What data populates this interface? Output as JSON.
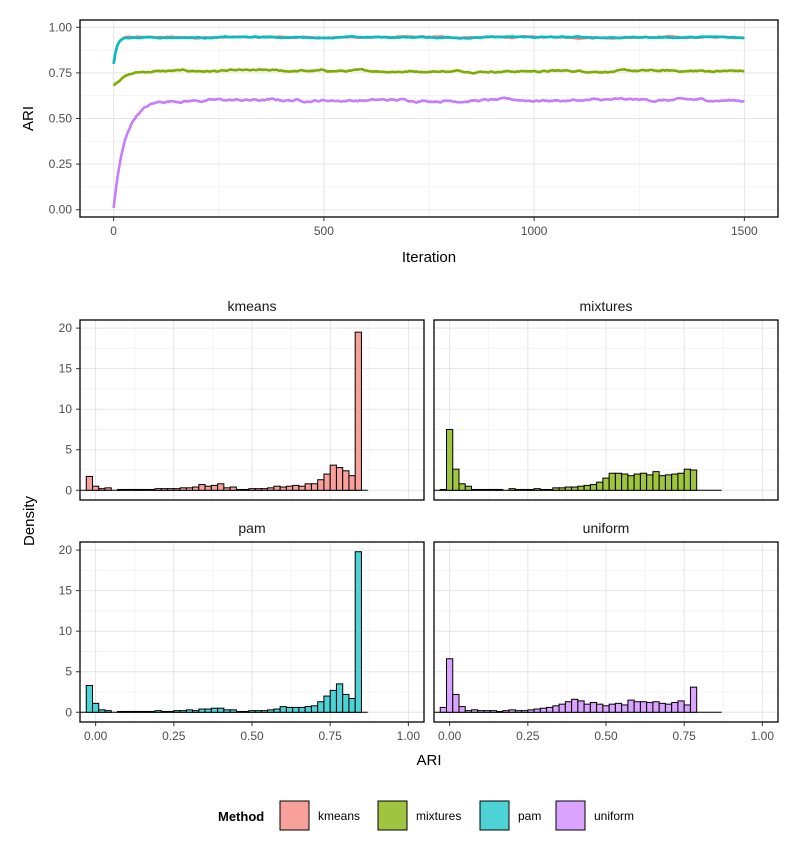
{
  "colors": {
    "kmeans": "#F8766D",
    "mixtures": "#7CAE00",
    "pam": "#00BFC4",
    "uniform": "#C77CFF",
    "hist_kmeans": "#F8A09A",
    "hist_mixtures": "#9FC440",
    "hist_pam": "#4DD3D6",
    "hist_uniform": "#D9A3FF"
  },
  "chart_data": [
    {
      "type": "line",
      "xlabel": "Iteration",
      "ylabel": "ARI",
      "xlim": [
        -80,
        1580
      ],
      "ylim": [
        -0.04,
        1.04
      ],
      "xticks": [
        0,
        500,
        1000,
        1500
      ],
      "xtick_labels": [
        "0",
        "500",
        "1000",
        "1500"
      ],
      "yticks": [
        0,
        0.25,
        0.5,
        0.75,
        1.0
      ],
      "ytick_labels": [
        "0.00",
        "0.25",
        "0.50",
        "0.75",
        "1.00"
      ],
      "series": [
        {
          "name": "kmeans",
          "start": 0.8,
          "plateau": 0.945,
          "rate": 8,
          "noise": 0.004
        },
        {
          "name": "mixtures",
          "start": 0.68,
          "plateau": 0.76,
          "rate": 25,
          "noise": 0.006
        },
        {
          "name": "uniform",
          "start": 0.01,
          "plateau": 0.6,
          "rate": 28,
          "noise": 0.008
        },
        {
          "name": "pam",
          "start": 0.8,
          "plateau": 0.945,
          "rate": 8,
          "noise": 0.004
        }
      ],
      "n_iterations": 1500
    },
    {
      "type": "bar",
      "facet_type": "histogram",
      "xlabel": "ARI",
      "ylabel": "Density",
      "xlim": [
        -0.05,
        1.05
      ],
      "ylim": [
        -1.2,
        21
      ],
      "xticks": [
        0,
        0.25,
        0.5,
        0.75,
        1.0
      ],
      "xtick_labels": [
        "0.00",
        "0.25",
        "0.50",
        "0.75",
        "1.00"
      ],
      "yticks": [
        0,
        5,
        10,
        15,
        20
      ],
      "ytick_labels": [
        "0",
        "5",
        "10",
        "15",
        "20"
      ],
      "bins_start": -0.05,
      "bin_width": 0.02,
      "facets": [
        {
          "title": "kmeans",
          "method": "kmeans",
          "values": [
            0,
            1.7,
            0.5,
            0.2,
            0.3,
            0,
            0.1,
            0.1,
            0.1,
            0.1,
            0.1,
            0.1,
            0.2,
            0.2,
            0.2,
            0.2,
            0.3,
            0.3,
            0.4,
            0.7,
            0.5,
            0.6,
            0.8,
            0.3,
            0.4,
            0.1,
            0.1,
            0.2,
            0.2,
            0.2,
            0.3,
            0.5,
            0.4,
            0.5,
            0.6,
            0.5,
            0.8,
            0.8,
            1.3,
            2.0,
            3.1,
            2.8,
            2.4,
            1.8,
            19.5,
            0
          ]
        },
        {
          "title": "mixtures",
          "method": "mixtures",
          "values": [
            0,
            0.1,
            7.5,
            2.6,
            0.8,
            0.5,
            0.1,
            0.1,
            0.1,
            0.1,
            0.1,
            0,
            0.2,
            0.1,
            0.1,
            0.1,
            0.2,
            0.1,
            0.1,
            0.3,
            0.3,
            0.4,
            0.4,
            0.5,
            0.6,
            0.7,
            1.0,
            1.5,
            2.1,
            2.1,
            2.0,
            1.8,
            2.0,
            2.1,
            1.9,
            2.3,
            1.8,
            1.9,
            2.0,
            2.1,
            2.6,
            2.5,
            0,
            0,
            0,
            0
          ]
        },
        {
          "title": "pam",
          "method": "pam",
          "values": [
            0,
            3.3,
            1.1,
            0.3,
            0.2,
            0,
            0.1,
            0.1,
            0.1,
            0.1,
            0.1,
            0.1,
            0.2,
            0.1,
            0.1,
            0.2,
            0.2,
            0.3,
            0.2,
            0.4,
            0.4,
            0.5,
            0.5,
            0.3,
            0.3,
            0.1,
            0.1,
            0.2,
            0.2,
            0.2,
            0.3,
            0.4,
            0.7,
            0.6,
            0.6,
            0.6,
            0.7,
            0.8,
            1.3,
            2.0,
            2.7,
            3.5,
            2.2,
            1.7,
            19.8,
            0
          ]
        },
        {
          "title": "uniform",
          "method": "uniform",
          "values": [
            0,
            0.6,
            6.6,
            2.2,
            0.7,
            0.2,
            0.3,
            0.2,
            0.2,
            0.2,
            0.1,
            0.2,
            0.3,
            0.2,
            0.2,
            0.3,
            0.4,
            0.5,
            0.6,
            0.8,
            1.0,
            1.3,
            1.6,
            1.4,
            1.0,
            1.2,
            1.0,
            0.8,
            1.0,
            1.1,
            0.9,
            1.5,
            1.3,
            1.3,
            1.2,
            1.3,
            1.1,
            1.0,
            1.2,
            1.4,
            0.9,
            3.1,
            0,
            0,
            0,
            0
          ]
        }
      ]
    }
  ],
  "legend": {
    "title": "Method",
    "items": [
      "kmeans",
      "mixtures",
      "pam",
      "uniform"
    ]
  }
}
